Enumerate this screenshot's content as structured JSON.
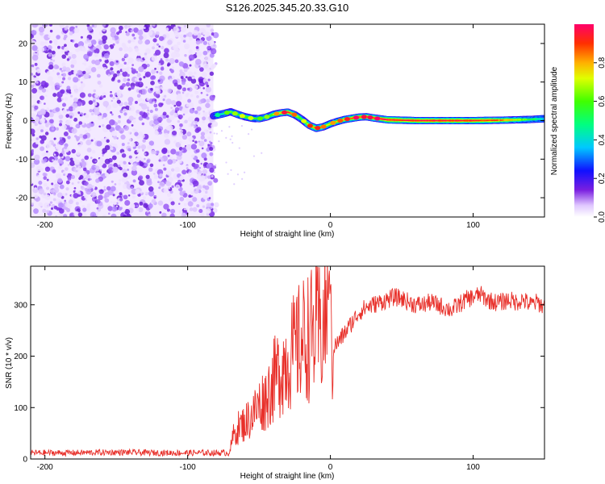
{
  "title": "S126.2025.345.20.33.G10",
  "chart_data": [
    {
      "type": "heatmap",
      "name": "spectrogram",
      "xlabel": "Height of straight line (km)",
      "ylabel": "Frequency (Hz)",
      "xlim": [
        -210,
        150
      ],
      "ylim": [
        -25,
        25
      ],
      "xticks": [
        -200,
        -100,
        0,
        100
      ],
      "yticks": [
        -20,
        -10,
        0,
        10,
        20
      ],
      "noise_region_x": [
        -210,
        -82
      ],
      "signal_track": {
        "x": [
          -82,
          -75,
          -70,
          -65,
          -60,
          -55,
          -50,
          -45,
          -40,
          -35,
          -30,
          -25,
          -20,
          -15,
          -10,
          -5,
          0,
          5,
          10,
          15,
          20,
          25,
          30,
          40,
          60,
          80,
          100,
          120,
          140,
          150
        ],
        "freq": [
          1.2,
          1.8,
          2.3,
          1.6,
          1.0,
          0.6,
          0.5,
          0.9,
          1.6,
          2.0,
          2.2,
          1.5,
          0.3,
          -1.2,
          -2.0,
          -1.6,
          -0.8,
          -0.2,
          0.3,
          0.6,
          0.9,
          1.0,
          0.7,
          0.2,
          0.0,
          0.0,
          0.0,
          0.1,
          0.3,
          0.5
        ],
        "amplitude": [
          0.3,
          0.45,
          0.6,
          0.55,
          0.65,
          0.6,
          0.5,
          0.55,
          0.65,
          0.8,
          0.9,
          0.75,
          0.55,
          0.8,
          0.85,
          0.75,
          0.7,
          0.75,
          0.8,
          0.9,
          0.9,
          0.85,
          0.9,
          0.95,
          0.95,
          0.95,
          0.95,
          0.85,
          0.55,
          0.4
        ]
      }
    },
    {
      "type": "line",
      "name": "snr",
      "xlabel": "Height of straight line (km)",
      "ylabel": "SNR (10 * v/v)",
      "xlim": [
        -210,
        150
      ],
      "ylim": [
        0,
        375
      ],
      "xticks": [
        -200,
        -100,
        0,
        100
      ],
      "yticks": [
        0,
        100,
        200,
        300
      ],
      "color": "#e8302a",
      "series": [
        {
          "name": "SNR",
          "x": [
            -210,
            -180,
            -150,
            -120,
            -90,
            -72,
            -70,
            -68,
            -65,
            -60,
            -55,
            -50,
            -45,
            -40,
            -35,
            -30,
            -25,
            -20,
            -15,
            -10,
            -5,
            -2,
            0,
            1,
            3,
            5,
            10,
            15,
            20,
            25,
            30,
            35,
            40,
            45,
            50,
            55,
            60,
            65,
            70,
            75,
            80,
            85,
            90,
            95,
            100,
            105,
            110,
            115,
            120,
            125,
            130,
            135,
            140,
            145,
            150
          ],
          "values": [
            12,
            12,
            13,
            12,
            12,
            12,
            20,
            45,
            60,
            70,
            85,
            105,
            120,
            150,
            175,
            195,
            210,
            230,
            240,
            245,
            255,
            300,
            310,
            200,
            220,
            225,
            245,
            265,
            285,
            295,
            300,
            305,
            310,
            315,
            312,
            305,
            300,
            300,
            305,
            300,
            295,
            290,
            300,
            310,
            315,
            320,
            310,
            305,
            305,
            310,
            305,
            310,
            300,
            305,
            295
          ]
        }
      ]
    }
  ],
  "colorbar": {
    "label": "Normalized spectral amplitude",
    "ticks": [
      "0.0",
      "0.2",
      "0.4",
      "0.6",
      "0.8"
    ],
    "tick_values": [
      0.0,
      0.2,
      0.4,
      0.6,
      0.8
    ],
    "range": [
      0,
      1
    ]
  }
}
